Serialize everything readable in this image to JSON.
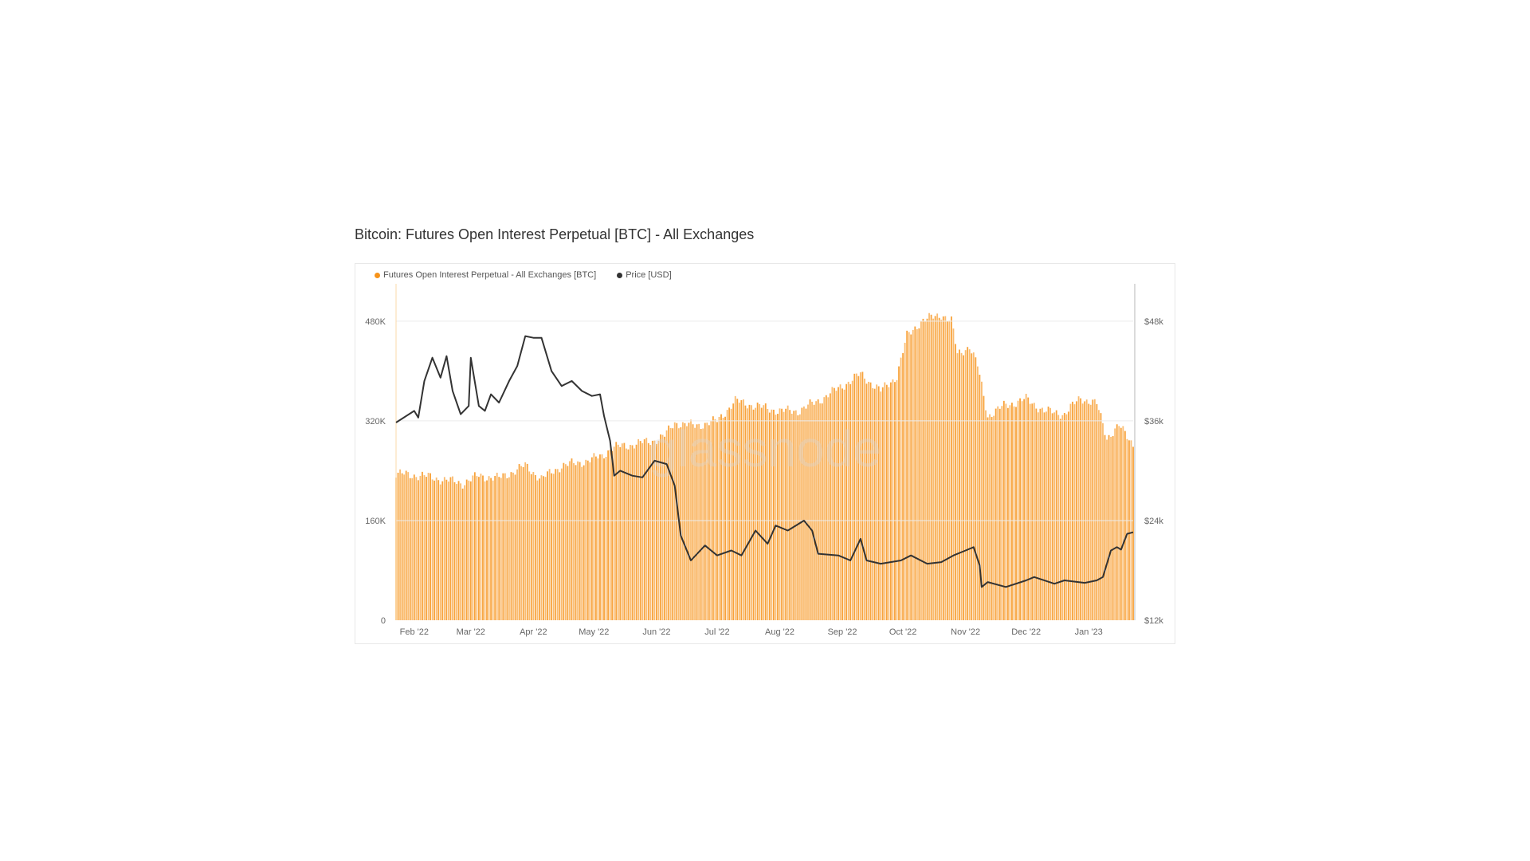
{
  "title": "Bitcoin: Futures Open Interest Perpetual [BTC] - All Exchanges",
  "watermark": "glassnode",
  "chart_data": {
    "type": "bar+line",
    "title": "Bitcoin: Futures Open Interest Perpetual [BTC] - All Exchanges",
    "legend_placement": "top-left",
    "grid": true,
    "x_range": [
      "2022-01-23",
      "2023-01-23"
    ],
    "x_ticks": [
      "Feb '22",
      "Mar '22",
      "Apr '22",
      "May '22",
      "Jun '22",
      "Jul '22",
      "Aug '22",
      "Sep '22",
      "Oct '22",
      "Nov '22",
      "Dec '22",
      "Jan '23"
    ],
    "x_tick_dates": [
      "2022-02-01",
      "2022-03-01",
      "2022-04-01",
      "2022-05-01",
      "2022-06-01",
      "2022-07-01",
      "2022-08-01",
      "2022-09-01",
      "2022-10-01",
      "2022-11-01",
      "2022-12-01",
      "2023-01-01"
    ],
    "y_left": {
      "range": [
        0,
        540000
      ],
      "ticks": [
        0,
        160000,
        320000,
        480000
      ],
      "tick_labels": [
        "0",
        "160K",
        "320K",
        "480K"
      ]
    },
    "y_right": {
      "range": [
        12000,
        52500
      ],
      "ticks": [
        12000,
        24000,
        36000,
        48000
      ],
      "tick_labels": [
        "$12k",
        "$24k",
        "$36k",
        "$48k"
      ]
    },
    "series": [
      {
        "name": "Futures Open Interest Perpetual - All Exchanges [BTC]",
        "type": "bar",
        "axis": "left",
        "color": "#f7931a",
        "points": [
          [
            "2022-01-23",
            235000
          ],
          [
            "2022-02-05",
            232000
          ],
          [
            "2022-02-25",
            220000
          ],
          [
            "2022-03-05",
            232000
          ],
          [
            "2022-03-15",
            228000
          ],
          [
            "2022-03-28",
            248000
          ],
          [
            "2022-04-05",
            227000
          ],
          [
            "2022-04-15",
            248000
          ],
          [
            "2022-04-28",
            256000
          ],
          [
            "2022-05-05",
            264000
          ],
          [
            "2022-05-10",
            277000
          ],
          [
            "2022-05-20",
            282000
          ],
          [
            "2022-05-30",
            288000
          ],
          [
            "2022-06-05",
            296000
          ],
          [
            "2022-06-10",
            317000
          ],
          [
            "2022-06-20",
            312000
          ],
          [
            "2022-07-01",
            320000
          ],
          [
            "2022-07-10",
            352000
          ],
          [
            "2022-07-20",
            344000
          ],
          [
            "2022-08-01",
            336000
          ],
          [
            "2022-08-10",
            336000
          ],
          [
            "2022-08-20",
            352000
          ],
          [
            "2022-09-01",
            376000
          ],
          [
            "2022-09-10",
            395000
          ],
          [
            "2022-09-20",
            368000
          ],
          [
            "2022-09-28",
            392000
          ],
          [
            "2022-10-03",
            456000
          ],
          [
            "2022-10-10",
            480000
          ],
          [
            "2022-10-20",
            491000
          ],
          [
            "2022-10-25",
            480000
          ],
          [
            "2022-10-28",
            427000
          ],
          [
            "2022-11-03",
            440000
          ],
          [
            "2022-11-07",
            408000
          ],
          [
            "2022-11-10",
            360000
          ],
          [
            "2022-11-12",
            328000
          ],
          [
            "2022-11-20",
            344000
          ],
          [
            "2022-12-01",
            355000
          ],
          [
            "2022-12-10",
            336000
          ],
          [
            "2022-12-20",
            331000
          ],
          [
            "2022-12-28",
            357000
          ],
          [
            "2023-01-05",
            347000
          ],
          [
            "2023-01-10",
            293000
          ],
          [
            "2023-01-16",
            312000
          ],
          [
            "2023-01-23",
            283000
          ]
        ]
      },
      {
        "name": "Price [USD]",
        "type": "line",
        "axis": "right",
        "color": "#333333",
        "points": [
          [
            "2022-01-23",
            35800
          ],
          [
            "2022-02-01",
            37200
          ],
          [
            "2022-02-03",
            36400
          ],
          [
            "2022-02-06",
            40800
          ],
          [
            "2022-02-10",
            43600
          ],
          [
            "2022-02-14",
            41200
          ],
          [
            "2022-02-17",
            43800
          ],
          [
            "2022-02-20",
            39600
          ],
          [
            "2022-02-24",
            36800
          ],
          [
            "2022-02-28",
            37800
          ],
          [
            "2022-03-01",
            43600
          ],
          [
            "2022-03-05",
            37800
          ],
          [
            "2022-03-08",
            37200
          ],
          [
            "2022-03-11",
            39200
          ],
          [
            "2022-03-15",
            38200
          ],
          [
            "2022-03-20",
            40800
          ],
          [
            "2022-03-24",
            42600
          ],
          [
            "2022-03-28",
            46200
          ],
          [
            "2022-04-01",
            46000
          ],
          [
            "2022-04-05",
            46000
          ],
          [
            "2022-04-10",
            42000
          ],
          [
            "2022-04-15",
            40200
          ],
          [
            "2022-04-20",
            40800
          ],
          [
            "2022-04-25",
            39600
          ],
          [
            "2022-04-30",
            39000
          ],
          [
            "2022-05-04",
            39200
          ],
          [
            "2022-05-06",
            36600
          ],
          [
            "2022-05-09",
            33600
          ],
          [
            "2022-05-11",
            29400
          ],
          [
            "2022-05-14",
            30000
          ],
          [
            "2022-05-20",
            29400
          ],
          [
            "2022-05-25",
            29200
          ],
          [
            "2022-05-31",
            31200
          ],
          [
            "2022-06-06",
            30800
          ],
          [
            "2022-06-10",
            28200
          ],
          [
            "2022-06-13",
            22200
          ],
          [
            "2022-06-18",
            19200
          ],
          [
            "2022-06-25",
            21000
          ],
          [
            "2022-07-01",
            19800
          ],
          [
            "2022-07-08",
            20400
          ],
          [
            "2022-07-13",
            19800
          ],
          [
            "2022-07-20",
            22800
          ],
          [
            "2022-07-26",
            21200
          ],
          [
            "2022-07-30",
            23400
          ],
          [
            "2022-08-05",
            22800
          ],
          [
            "2022-08-13",
            24000
          ],
          [
            "2022-08-17",
            22800
          ],
          [
            "2022-08-20",
            20000
          ],
          [
            "2022-08-30",
            19800
          ],
          [
            "2022-09-05",
            19200
          ],
          [
            "2022-09-10",
            21800
          ],
          [
            "2022-09-13",
            19200
          ],
          [
            "2022-09-20",
            18800
          ],
          [
            "2022-09-30",
            19200
          ],
          [
            "2022-10-05",
            19800
          ],
          [
            "2022-10-13",
            18800
          ],
          [
            "2022-10-20",
            19000
          ],
          [
            "2022-10-26",
            19800
          ],
          [
            "2022-11-01",
            20400
          ],
          [
            "2022-11-05",
            20800
          ],
          [
            "2022-11-08",
            18600
          ],
          [
            "2022-11-09",
            16000
          ],
          [
            "2022-11-12",
            16600
          ],
          [
            "2022-11-21",
            16000
          ],
          [
            "2022-12-01",
            16800
          ],
          [
            "2022-12-05",
            17200
          ],
          [
            "2022-12-15",
            16400
          ],
          [
            "2022-12-20",
            16800
          ],
          [
            "2022-12-30",
            16500
          ],
          [
            "2023-01-05",
            16800
          ],
          [
            "2023-01-08",
            17200
          ],
          [
            "2023-01-12",
            20400
          ],
          [
            "2023-01-15",
            20800
          ],
          [
            "2023-01-17",
            20500
          ],
          [
            "2023-01-20",
            22400
          ],
          [
            "2023-01-23",
            22600
          ]
        ]
      }
    ]
  }
}
